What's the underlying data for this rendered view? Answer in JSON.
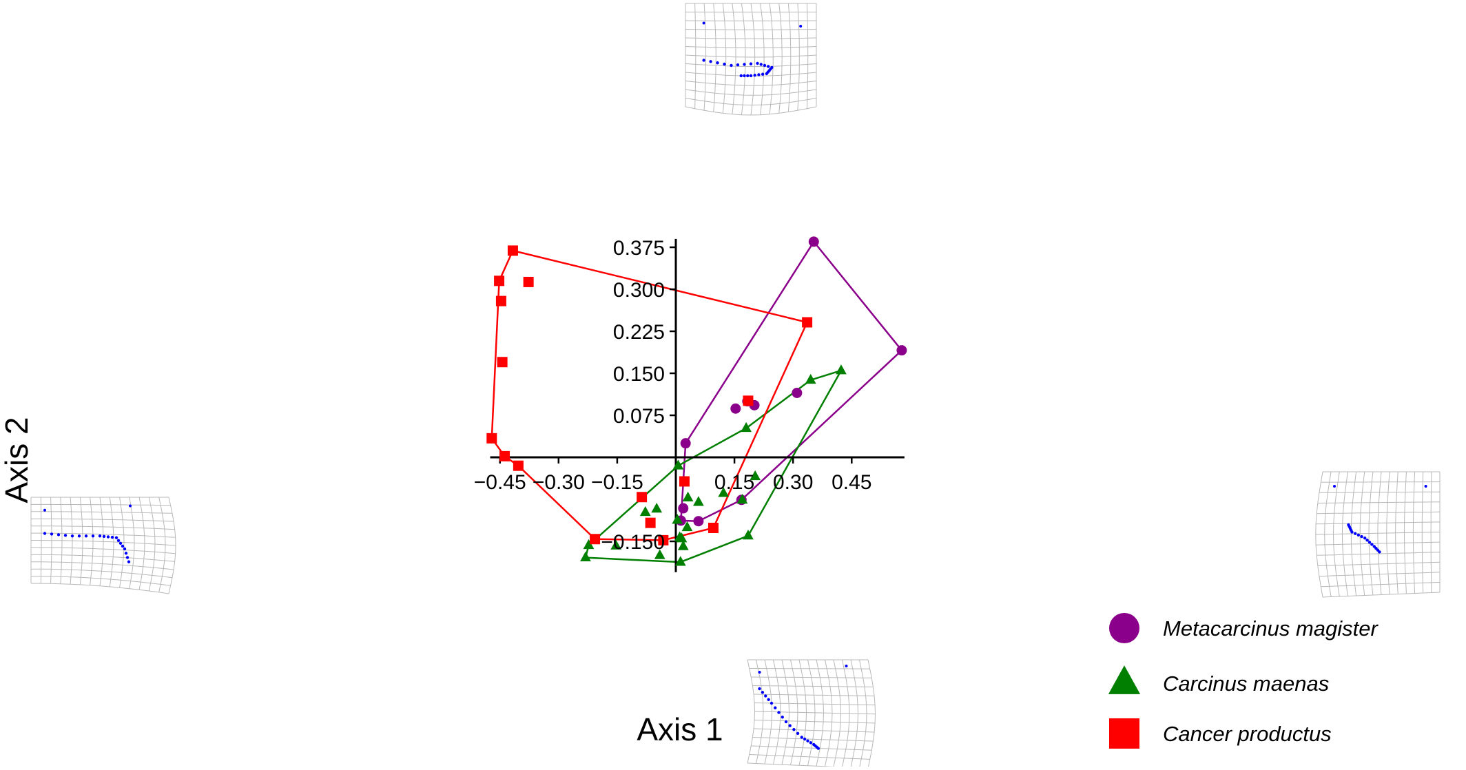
{
  "chart_data": {
    "type": "scatter",
    "xlabel": "Axis 1",
    "ylabel": "Axis 2",
    "xlim": [
      -0.475,
      0.585
    ],
    "ylim": [
      -0.205,
      0.39
    ],
    "xticks": [
      -0.45,
      -0.3,
      -0.15,
      0.15,
      0.3,
      0.45
    ],
    "xtick_labels": [
      "−0.45",
      "−0.30",
      "−0.15",
      "0.15",
      "0.30",
      "0.45"
    ],
    "yticks": [
      -0.15,
      0.075,
      0.15,
      0.225,
      0.3,
      0.375
    ],
    "ytick_labels": [
      "−0.150",
      "0.075",
      "0.150",
      "0.225",
      "0.300",
      "0.375"
    ],
    "grid": false,
    "legend_position": "bottom-right",
    "series": [
      {
        "name": "Metacarcinus magister",
        "color": "#8B008B",
        "marker": "circle",
        "points": [
          [
            0.353,
            0.385
          ],
          [
            0.578,
            0.191
          ],
          [
            0.168,
            -0.076
          ],
          [
            0.058,
            -0.114
          ],
          [
            0.013,
            -0.113
          ],
          [
            0.025,
            0.025
          ],
          [
            0.153,
            0.087
          ],
          [
            0.183,
            0.1
          ],
          [
            0.201,
            0.093
          ],
          [
            0.31,
            0.115
          ],
          [
            0.019,
            -0.091
          ]
        ],
        "hull": [
          [
            0.353,
            0.385
          ],
          [
            0.578,
            0.191
          ],
          [
            0.168,
            -0.076
          ],
          [
            0.058,
            -0.114
          ],
          [
            0.013,
            -0.113
          ],
          [
            0.025,
            0.025
          ]
        ]
      },
      {
        "name": "Carcinus maenas",
        "color": "#007F00",
        "marker": "triangle",
        "points": [
          [
            0.423,
            0.155
          ],
          [
            0.185,
            -0.14
          ],
          [
            0.012,
            -0.187
          ],
          [
            -0.231,
            -0.179
          ],
          [
            -0.223,
            -0.157
          ],
          [
            0.006,
            -0.015
          ],
          [
            0.18,
            0.052
          ],
          [
            0.345,
            0.138
          ],
          [
            -0.078,
            -0.098
          ],
          [
            -0.049,
            -0.092
          ],
          [
            0.031,
            -0.072
          ],
          [
            0.058,
            -0.08
          ],
          [
            0.122,
            -0.064
          ],
          [
            0.203,
            -0.034
          ],
          [
            0.004,
            -0.112
          ],
          [
            0.029,
            -0.125
          ],
          [
            0.01,
            -0.143
          ],
          [
            -0.153,
            -0.158
          ],
          [
            -0.041,
            -0.175
          ],
          [
            0.019,
            -0.159
          ],
          [
            0.015,
            -0.145
          ],
          [
            0.17,
            -0.076
          ]
        ],
        "hull": [
          [
            0.423,
            0.155
          ],
          [
            0.185,
            -0.14
          ],
          [
            0.012,
            -0.187
          ],
          [
            -0.231,
            -0.179
          ],
          [
            -0.223,
            -0.157
          ],
          [
            0.006,
            -0.015
          ],
          [
            0.18,
            0.052
          ],
          [
            0.345,
            0.138
          ]
        ]
      },
      {
        "name": "Cancer productus",
        "color": "#FF0000",
        "marker": "square",
        "points": [
          [
            -0.417,
            0.369
          ],
          [
            0.336,
            0.241
          ],
          [
            0.096,
            -0.126
          ],
          [
            -0.032,
            -0.148
          ],
          [
            -0.207,
            -0.146
          ],
          [
            -0.403,
            -0.015
          ],
          [
            -0.438,
            0.002
          ],
          [
            -0.471,
            0.034
          ],
          [
            -0.452,
            0.315
          ],
          [
            -0.377,
            0.313
          ],
          [
            -0.447,
            0.279
          ],
          [
            -0.444,
            0.17
          ],
          [
            0.185,
            0.101
          ],
          [
            0.022,
            -0.043
          ],
          [
            -0.087,
            -0.071
          ],
          [
            -0.065,
            -0.117
          ]
        ],
        "hull": [
          [
            -0.417,
            0.369
          ],
          [
            0.336,
            0.241
          ],
          [
            0.096,
            -0.126
          ],
          [
            -0.032,
            -0.148
          ],
          [
            -0.207,
            -0.146
          ],
          [
            -0.403,
            -0.015
          ],
          [
            -0.438,
            0.002
          ],
          [
            -0.471,
            0.034
          ],
          [
            -0.452,
            0.315
          ]
        ]
      }
    ],
    "deformation_grids": [
      {
        "name": "grid-top"
      },
      {
        "name": "grid-left"
      },
      {
        "name": "grid-bottom"
      },
      {
        "name": "grid-right"
      }
    ]
  }
}
